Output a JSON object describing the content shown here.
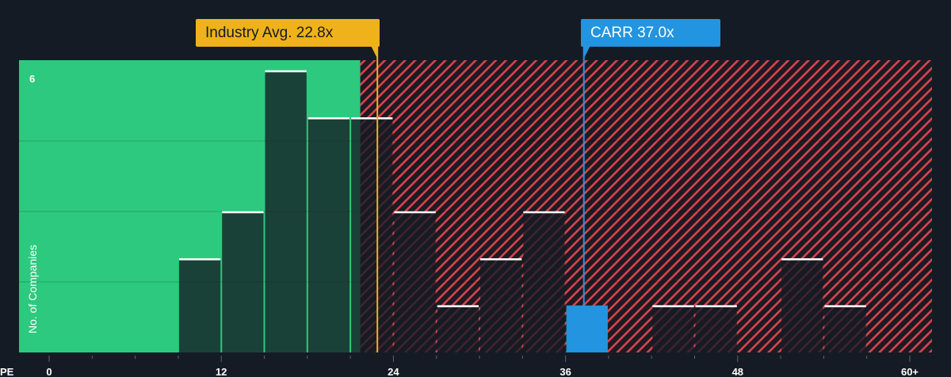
{
  "chart_data": {
    "type": "bar",
    "xlabel": "PE",
    "ylabel": "No. of Companies",
    "x_ticks": [
      "0",
      "12",
      "24",
      "36",
      "48",
      "60+"
    ],
    "x_tick_values": [
      0,
      12,
      24,
      36,
      48,
      60
    ],
    "y_tick_labels": [
      "6"
    ],
    "xlim": [
      0,
      61
    ],
    "ylim": [
      0,
      6.1
    ],
    "grid": true,
    "bin_width": 3,
    "bins": [
      {
        "x0": 9,
        "value": 2
      },
      {
        "x0": 12,
        "value": 3
      },
      {
        "x0": 15,
        "value": 6
      },
      {
        "x0": 18,
        "value": 5
      },
      {
        "x0": 21,
        "value": 5
      },
      {
        "x0": 24,
        "value": 3
      },
      {
        "x0": 27,
        "value": 1
      },
      {
        "x0": 30,
        "value": 2
      },
      {
        "x0": 33,
        "value": 3
      },
      {
        "x0": 36,
        "value": 1,
        "highlight": true
      },
      {
        "x0": 42,
        "value": 1
      },
      {
        "x0": 45,
        "value": 1
      },
      {
        "x0": 51,
        "value": 2
      },
      {
        "x0": 54,
        "value": 1
      }
    ],
    "industry_avg": {
      "label": "Industry Avg. 22.8x",
      "value": 22.8
    },
    "company": {
      "label": "CARR 37.0x",
      "ticker": "CARR",
      "value": 37.0
    },
    "colors": {
      "good_zone": "#2dc97e",
      "bad_zone": "#d9434f",
      "bar_dark": "#1f4a3a",
      "bar_company": "#2394df",
      "industry_callout": "#efb21a",
      "company_callout": "#2394df",
      "background": "#151b24"
    }
  }
}
